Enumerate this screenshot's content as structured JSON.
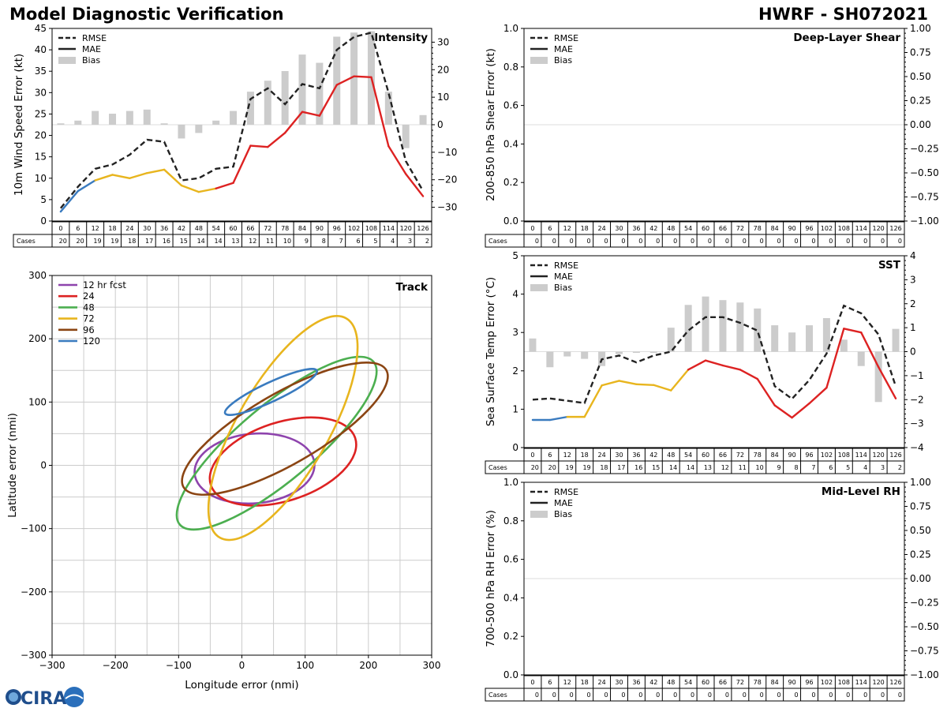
{
  "header": {
    "title": "Model Diagnostic Verification",
    "storm": "HWRF - SH072021"
  },
  "colors": {
    "rmse": "#222222",
    "bias": "#cccccc",
    "lead_early": "#3a7bbf",
    "lead_mid": "#e8b51e",
    "lead_late": "#dd2222",
    "grid": "#cccccc"
  },
  "leads": [
    0,
    6,
    12,
    18,
    24,
    30,
    36,
    42,
    48,
    54,
    60,
    66,
    72,
    78,
    84,
    90,
    96,
    102,
    108,
    114,
    120,
    126
  ],
  "cases_label": "Cases",
  "legend_labels": [
    "RMSE",
    "MAE",
    "Bias"
  ],
  "chart_data": [
    {
      "id": "intensity",
      "type": "line",
      "title": "Intensity",
      "ylabel": "10m Wind Speed Error (kt)",
      "ylim": [
        0,
        45
      ],
      "yticks": [
        0,
        5,
        10,
        15,
        20,
        25,
        30,
        35,
        40,
        45
      ],
      "y2lim": [
        -35,
        35
      ],
      "y2ticks": [
        -30,
        -20,
        -10,
        0,
        10,
        20,
        30
      ],
      "rmse": [
        3.0,
        8.0,
        12.2,
        13.2,
        15.5,
        19.0,
        18.5,
        9.5,
        10.0,
        12.2,
        12.7,
        28.5,
        31.0,
        27.3,
        32.0,
        31.0,
        40.0,
        43.0,
        44.0,
        30.0,
        14.0,
        7.0
      ],
      "mae": [
        2.2,
        7.0,
        9.5,
        10.8,
        10.0,
        11.2,
        12.0,
        8.3,
        6.8,
        7.6,
        8.9,
        17.6,
        17.3,
        20.6,
        25.5,
        24.6,
        31.8,
        33.8,
        33.6,
        17.5,
        11.0,
        5.8
      ],
      "bias": [
        0.5,
        1.5,
        5.0,
        4.0,
        5.0,
        5.5,
        0.5,
        -5.0,
        -3.0,
        1.5,
        5.0,
        12.0,
        16.0,
        19.5,
        25.5,
        22.5,
        32.0,
        33.5,
        34.0,
        12.0,
        -8.5,
        3.5
      ],
      "cases": [
        20,
        20,
        19,
        19,
        18,
        17,
        16,
        15,
        14,
        14,
        13,
        12,
        11,
        10,
        9,
        8,
        7,
        6,
        5,
        4,
        3,
        2
      ]
    },
    {
      "id": "shear",
      "type": "line",
      "title": "Deep-Layer Shear",
      "ylabel": "200-850 hPa Shear Error (kt)",
      "ylim": [
        0,
        1.0
      ],
      "yticks": [
        0.0,
        0.2,
        0.4,
        0.6,
        0.8,
        1.0
      ],
      "y2lim": [
        -1,
        1
      ],
      "y2ticks": [
        -1.0,
        -0.75,
        -0.5,
        -0.25,
        0.0,
        0.25,
        0.5,
        0.75,
        1.0
      ],
      "rmse": [],
      "mae": [],
      "bias": [],
      "cases": [
        0,
        0,
        0,
        0,
        0,
        0,
        0,
        0,
        0,
        0,
        0,
        0,
        0,
        0,
        0,
        0,
        0,
        0,
        0,
        0,
        0,
        0
      ]
    },
    {
      "id": "sst",
      "type": "line",
      "title": "SST",
      "ylabel": "Sea Surface Temp Error (°C)",
      "ylim": [
        0,
        5
      ],
      "yticks": [
        0,
        1,
        2,
        3,
        4,
        5
      ],
      "y2lim": [
        -4,
        4
      ],
      "y2ticks": [
        -4,
        -3,
        -2,
        -1,
        0,
        1,
        2,
        3,
        4
      ],
      "rmse": [
        1.25,
        1.28,
        1.22,
        1.16,
        2.3,
        2.4,
        2.22,
        2.4,
        2.5,
        3.05,
        3.4,
        3.4,
        3.25,
        3.05,
        1.6,
        1.27,
        1.76,
        2.45,
        3.7,
        3.5,
        2.95,
        1.6
      ],
      "mae": [
        0.72,
        0.72,
        0.8,
        0.8,
        1.62,
        1.74,
        1.65,
        1.63,
        1.49,
        2.03,
        2.27,
        2.14,
        2.03,
        1.79,
        1.1,
        0.78,
        1.15,
        1.56,
        3.1,
        3.0,
        2.1,
        1.28
      ],
      "bias": [
        0.55,
        -0.65,
        -0.2,
        -0.3,
        -0.6,
        -0.1,
        -0.05,
        -0.05,
        1.0,
        1.95,
        2.3,
        2.15,
        2.05,
        1.8,
        1.1,
        0.8,
        1.1,
        1.4,
        0.5,
        -0.6,
        -2.1,
        0.95
      ],
      "cases": [
        20,
        20,
        19,
        19,
        18,
        17,
        16,
        15,
        14,
        14,
        13,
        12,
        11,
        10,
        9,
        8,
        7,
        6,
        5,
        4,
        3,
        2
      ]
    },
    {
      "id": "rh",
      "type": "line",
      "title": "Mid-Level RH",
      "ylabel": "700-500 hPa RH Error (%)",
      "ylim": [
        0,
        1.0
      ],
      "yticks": [
        0.0,
        0.2,
        0.4,
        0.6,
        0.8,
        1.0
      ],
      "y2lim": [
        -1,
        1
      ],
      "y2ticks": [
        -1.0,
        -0.75,
        -0.5,
        -0.25,
        0.0,
        0.25,
        0.5,
        0.75,
        1.0
      ],
      "rmse": [],
      "mae": [],
      "bias": [],
      "cases": [
        0,
        0,
        0,
        0,
        0,
        0,
        0,
        0,
        0,
        0,
        0,
        0,
        0,
        0,
        0,
        0,
        0,
        0,
        0,
        0,
        0,
        0
      ]
    },
    {
      "id": "track",
      "type": "scatter",
      "title": "Track",
      "xlabel": "Longitude error (nmi)",
      "ylabel": "Latitude error (nmi)",
      "xlim": [
        -300,
        300
      ],
      "ylim": [
        -300,
        300
      ],
      "ticks": [
        -300,
        -200,
        -100,
        0,
        100,
        200,
        300
      ],
      "ellipses": [
        {
          "label": "12 hr fcst",
          "color": "#8e44ad",
          "cx": 20,
          "cy": -5,
          "rx": 95,
          "ry": 55,
          "angle": -5
        },
        {
          "label": "24",
          "color": "#dd2222",
          "cx": 65,
          "cy": 6,
          "rx": 120,
          "ry": 62,
          "angle": -18
        },
        {
          "label": "48",
          "color": "#4caf50",
          "cx": 55,
          "cy": 35,
          "rx": 200,
          "ry": 60,
          "angle": -40
        },
        {
          "label": "72",
          "color": "#e8b51e",
          "cx": 65,
          "cy": 59,
          "rx": 200,
          "ry": 72,
          "angle": -60
        },
        {
          "label": "96",
          "color": "#8b4513",
          "cx": 68,
          "cy": 58,
          "rx": 185,
          "ry": 56,
          "angle": -30
        },
        {
          "label": "120",
          "color": "#3a7bbf",
          "cx": 46,
          "cy": 116,
          "rx": 80,
          "ry": 15,
          "angle": -25
        }
      ]
    }
  ],
  "logo": {
    "text": "CIRA"
  }
}
